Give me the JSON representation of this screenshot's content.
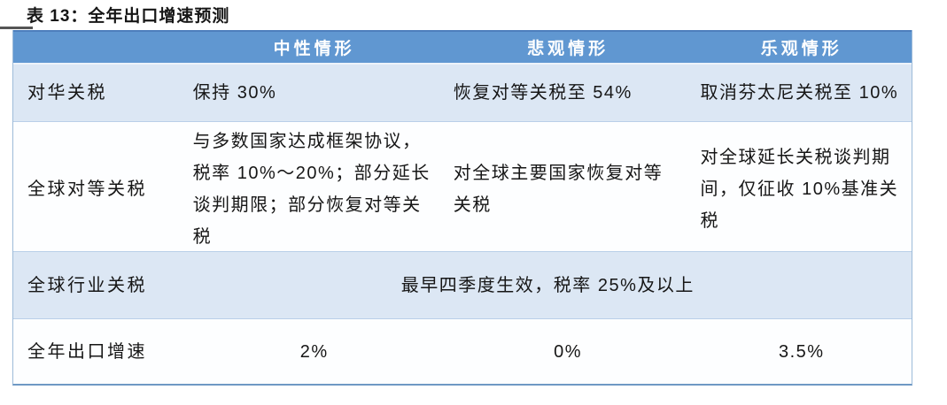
{
  "title": "表 13：全年出口增速预测",
  "table": {
    "columns": [
      "",
      "中性情形",
      "悲观情形",
      "乐观情形"
    ],
    "rows": [
      {
        "label": "对华关税",
        "cells": [
          "保持 30%",
          "恢复对等关税至 54%",
          "取消芬太尼关税至 10%"
        ]
      },
      {
        "label": "全球对等关税",
        "cells": [
          "与多数国家达成框架协议，税率 10%～20%；部分延长谈判期限；部分恢复对等关税",
          "对全球主要国家恢复对等关税",
          "对全球延长关税谈判期间，仅征收 10%基准关税"
        ]
      },
      {
        "label": "全球行业关税",
        "span_cell": "最早四季度生效，税率 25%及以上"
      },
      {
        "label": "全年出口增速",
        "cells": [
          "2%",
          "0%",
          "3.5%"
        ]
      }
    ]
  },
  "colors": {
    "header_bg": "#6097d1",
    "header_top_border": "#4d7ebc",
    "row_alt_bg": "#dce7f4",
    "row_white_bg": "#fdfeff",
    "row_divider": "#b9cfe8",
    "outer_border": "#9dbbd9",
    "bottom_border": "#6e99c4",
    "header_text": "#ffffff",
    "body_text": "#161616"
  }
}
